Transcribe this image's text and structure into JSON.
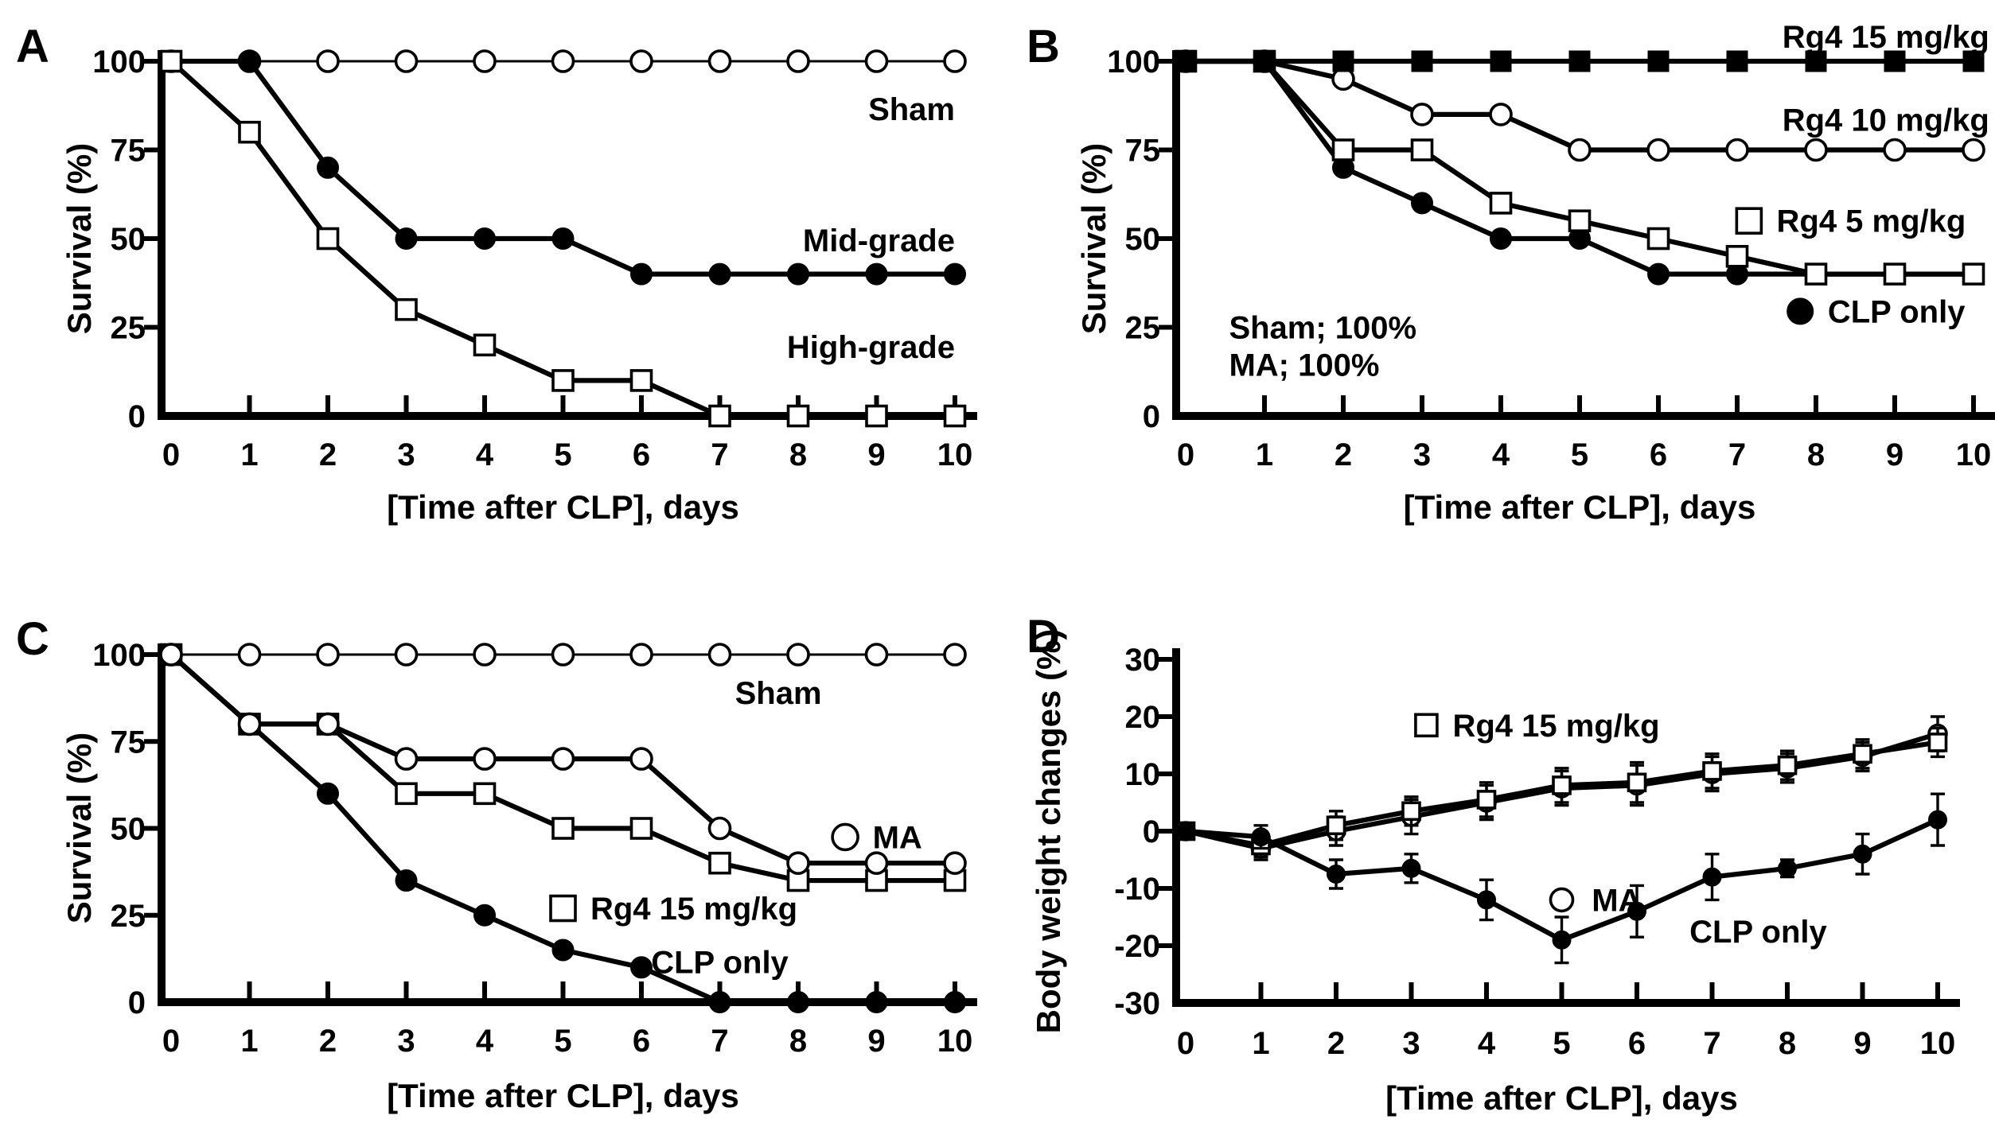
{
  "figure": {
    "background": "#ffffff",
    "ink": "#000000"
  },
  "chart_data": [
    {
      "id": "A",
      "letter": "A",
      "type": "line",
      "xlabel": "[Time after CLP], days",
      "ylabel": "Survival (%)",
      "x": [
        0,
        1,
        2,
        3,
        4,
        5,
        6,
        7,
        8,
        9,
        10
      ],
      "xticks": [
        0,
        1,
        2,
        3,
        4,
        5,
        6,
        7,
        8,
        9,
        10
      ],
      "ylim": [
        0,
        100
      ],
      "yticks": [
        0,
        25,
        50,
        75,
        100
      ],
      "grid": false,
      "series": [
        {
          "name": "Sham",
          "marker": "circle-open",
          "line": "thin",
          "values": [
            100,
            100,
            100,
            100,
            100,
            100,
            100,
            100,
            100,
            100,
            100
          ]
        },
        {
          "name": "Mid-grade",
          "marker": "circle-filled",
          "line": "thick",
          "values": [
            100,
            100,
            70,
            50,
            50,
            50,
            40,
            40,
            40,
            40,
            40
          ]
        },
        {
          "name": "High-grade",
          "marker": "square-open",
          "line": "thick",
          "values": [
            100,
            80,
            50,
            30,
            20,
            10,
            10,
            0,
            0,
            0,
            0
          ]
        }
      ],
      "labels": [
        {
          "text": "Sham",
          "x": 10,
          "y": 86.5,
          "anchor": "end",
          "icon": null
        },
        {
          "text": "Mid-grade",
          "x": 10,
          "y": 49.5,
          "anchor": "end",
          "icon": null
        },
        {
          "text": "High-grade",
          "x": 10,
          "y": 19.5,
          "anchor": "end",
          "icon": null
        }
      ]
    },
    {
      "id": "B",
      "letter": "B",
      "type": "line",
      "xlabel": "[Time after CLP], days",
      "ylabel": "Survival (%)",
      "x": [
        0,
        1,
        2,
        3,
        4,
        5,
        6,
        7,
        8,
        9,
        10
      ],
      "xticks": [
        0,
        1,
        2,
        3,
        4,
        5,
        6,
        7,
        8,
        9,
        10
      ],
      "ylim": [
        0,
        100
      ],
      "yticks": [
        0,
        25,
        50,
        75,
        100
      ],
      "grid": false,
      "series": [
        {
          "name": "Rg4 10 mg/kg",
          "marker": "circle-open",
          "line": "thick",
          "values": [
            100,
            100,
            95,
            85,
            85,
            75,
            75,
            75,
            75,
            75,
            75
          ]
        },
        {
          "name": "CLP only",
          "marker": "circle-filled",
          "line": "thick",
          "values": [
            100,
            100,
            70,
            60,
            50,
            50,
            40,
            40,
            40,
            40,
            40
          ]
        },
        {
          "name": "Rg4 5 mg/kg",
          "marker": "square-open",
          "line": "thick",
          "values": [
            100,
            100,
            75,
            75,
            60,
            55,
            50,
            45,
            40,
            40,
            40
          ]
        },
        {
          "name": "Rg4 15 mg/kg",
          "marker": "square-filled",
          "line": "thick",
          "values": [
            100,
            100,
            100,
            100,
            100,
            100,
            100,
            100,
            100,
            100,
            100
          ]
        }
      ],
      "labels": [
        {
          "text": "Rg4 15 mg/kg",
          "x": 10.2,
          "y": 107,
          "anchor": "end",
          "icon": null
        },
        {
          "text": "Rg4 10 mg/kg",
          "x": 10.2,
          "y": 83.5,
          "anchor": "end",
          "icon": null
        },
        {
          "text": "Rg4 5 mg/kg",
          "x": 7.5,
          "y": 55,
          "anchor": "start",
          "icon": "square-open",
          "icon_x": 7.15
        },
        {
          "text": "CLP only",
          "x": 8.15,
          "y": 29.5,
          "anchor": "start",
          "icon": "circle-filled",
          "icon_x": 7.8
        }
      ],
      "annotations": [
        {
          "text": "Sham; 100%",
          "x": 0.55,
          "y": 25,
          "anchor": "start"
        },
        {
          "text": "MA; 100%",
          "x": 0.55,
          "y": 14.5,
          "anchor": "start"
        }
      ]
    },
    {
      "id": "C",
      "letter": "C",
      "type": "line",
      "xlabel": "[Time after CLP], days",
      "ylabel": "Survival (%)",
      "x": [
        0,
        1,
        2,
        3,
        4,
        5,
        6,
        7,
        8,
        9,
        10
      ],
      "xticks": [
        0,
        1,
        2,
        3,
        4,
        5,
        6,
        7,
        8,
        9,
        10
      ],
      "ylim": [
        0,
        100
      ],
      "yticks": [
        0,
        25,
        50,
        75,
        100
      ],
      "grid": false,
      "series": [
        {
          "name": "CLP only",
          "marker": "circle-filled",
          "line": "thick",
          "values": [
            100,
            80,
            60,
            35,
            25,
            15,
            10,
            0,
            0,
            0,
            0
          ]
        },
        {
          "name": "Rg4 15 mg/kg",
          "marker": "square-open",
          "line": "thick",
          "values": [
            100,
            80,
            80,
            60,
            60,
            50,
            50,
            40,
            35,
            35,
            35
          ]
        },
        {
          "name": "MA",
          "marker": "circle-open",
          "line": "thick",
          "values": [
            100,
            80,
            80,
            70,
            70,
            70,
            70,
            50,
            40,
            40,
            40
          ]
        },
        {
          "name": "Sham",
          "marker": "circle-open",
          "line": "thin",
          "values": [
            100,
            100,
            100,
            100,
            100,
            100,
            100,
            100,
            100,
            100,
            100
          ]
        }
      ],
      "labels": [
        {
          "text": "Sham",
          "x": 8.3,
          "y": 89,
          "anchor": "end",
          "icon": null
        },
        {
          "text": "MA",
          "x": 8.95,
          "y": 47.5,
          "anchor": "start",
          "icon": "circle-open",
          "icon_x": 8.6
        },
        {
          "text": "Rg4 15 mg/kg",
          "x": 5.35,
          "y": 27,
          "anchor": "start",
          "icon": "square-open",
          "icon_x": 5.0
        },
        {
          "text": "CLP only",
          "x": 7.0,
          "y": 11.5,
          "anchor": "middle",
          "icon": null
        }
      ]
    },
    {
      "id": "D",
      "letter": "D",
      "type": "line",
      "xlabel": "[Time after CLP], days",
      "ylabel": "Body weight changes (%)",
      "x": [
        0,
        1,
        2,
        3,
        4,
        5,
        6,
        7,
        8,
        9,
        10
      ],
      "xticks": [
        0,
        1,
        2,
        3,
        4,
        5,
        6,
        7,
        8,
        9,
        10
      ],
      "ylim": [
        -30,
        30
      ],
      "yticks": [
        -30,
        -20,
        -10,
        0,
        10,
        20,
        30
      ],
      "grid": false,
      "series": [
        {
          "name": "MA",
          "marker": "circle-open",
          "line": "thick",
          "values": [
            0,
            -3,
            0,
            2.5,
            5,
            7.5,
            8,
            10,
            11,
            13,
            17
          ],
          "errors": [
            0,
            2,
            2.5,
            3,
            3,
            3,
            3.5,
            3,
            2.5,
            2.5,
            3
          ]
        },
        {
          "name": "Rg4 15 mg/kg",
          "marker": "square-open",
          "line": "thick",
          "values": [
            0,
            -2.5,
            1,
            3.5,
            5.5,
            8,
            8.5,
            10.5,
            11.5,
            13.5,
            15.5
          ],
          "errors": [
            0,
            2,
            2.5,
            2.5,
            3,
            3,
            3.5,
            3,
            2.5,
            2.5,
            2.5
          ]
        },
        {
          "name": "CLP only",
          "marker": "circle-filled",
          "line": "thick",
          "values": [
            0,
            -1,
            -7.5,
            -6.5,
            -12,
            -19,
            -14,
            -8,
            -6.5,
            -4,
            2
          ],
          "errors": [
            0,
            2,
            2.5,
            2.5,
            3.5,
            4,
            4.5,
            4,
            1.5,
            3.5,
            4.5
          ]
        }
      ],
      "labels": [
        {
          "text": "Rg4 15 mg/kg",
          "x": 3.55,
          "y": 18.5,
          "anchor": "start",
          "icon": "square-open",
          "icon_x": 3.2
        },
        {
          "text": "MA",
          "x": 5.4,
          "y": -12,
          "anchor": "start",
          "icon": "circle-open",
          "icon_x": 5.0
        },
        {
          "text": "CLP only",
          "x": 6.7,
          "y": -17.5,
          "anchor": "start",
          "icon": null
        }
      ]
    }
  ]
}
